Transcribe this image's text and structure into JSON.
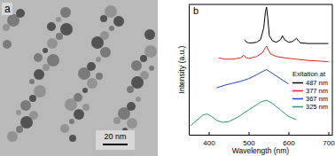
{
  "image": {
    "label": "a",
    "scale_bar": "20 nm"
  },
  "chart_data": {
    "type": "line",
    "title": "b",
    "x_label": "Wavelength (nm)",
    "y_label": "Intensity (a.u.)",
    "xlim": [
      350,
      710
    ],
    "xticks": [
      400,
      500,
      600,
      700
    ],
    "ylim": [
      0,
      10
    ],
    "yticks": [],
    "tick_labels": "x",
    "legend": "right",
    "legend_title": "Exitation at",
    "series": [
      {
        "name": "487 nm",
        "color": "#000000",
        "x": [
          490,
          495,
          500,
          510,
          520,
          530,
          538,
          542,
          545,
          548,
          552,
          560,
          570,
          580,
          585,
          590,
          600,
          610,
          620,
          625,
          630,
          650,
          670,
          700
        ],
        "values": [
          7.3,
          7.1,
          7.05,
          7.05,
          7.1,
          7.3,
          8.2,
          9.4,
          9.8,
          9.0,
          7.6,
          7.2,
          7.1,
          7.3,
          7.6,
          7.3,
          7.1,
          7.15,
          7.4,
          7.2,
          7.05,
          7.0,
          7.0,
          7.0
        ]
      },
      {
        "name": "377 nm",
        "color": "#e8201e",
        "x": [
          425,
          440,
          460,
          480,
          488,
          492,
          500,
          520,
          535,
          542,
          545,
          548,
          555,
          570,
          590,
          620,
          650,
          680,
          700
        ],
        "values": [
          5.9,
          5.8,
          5.8,
          5.9,
          6.1,
          5.95,
          5.85,
          6.0,
          6.3,
          6.7,
          6.8,
          6.6,
          6.2,
          6.0,
          5.9,
          5.8,
          5.7,
          5.65,
          5.6
        ]
      },
      {
        "name": "367 nm",
        "color": "#1f3fe0",
        "x": [
          420,
          440,
          460,
          480,
          500,
          520,
          535,
          545,
          555,
          570,
          585,
          600
        ],
        "values": [
          3.6,
          3.8,
          3.95,
          4.1,
          4.3,
          4.6,
          4.85,
          5.0,
          4.8,
          4.5,
          4.2,
          3.9
        ]
      },
      {
        "name": "325 nm",
        "color": "#2a9a6a",
        "x": [
          355,
          370,
          385,
          395,
          405,
          420,
          435,
          450,
          470,
          490,
          510,
          530,
          545,
          560,
          580,
          600,
          620
        ],
        "values": [
          0.7,
          1.1,
          1.5,
          1.6,
          1.45,
          1.1,
          0.95,
          1.0,
          1.3,
          1.7,
          2.1,
          2.5,
          2.65,
          2.4,
          1.9,
          1.4,
          1.15
        ]
      }
    ]
  }
}
